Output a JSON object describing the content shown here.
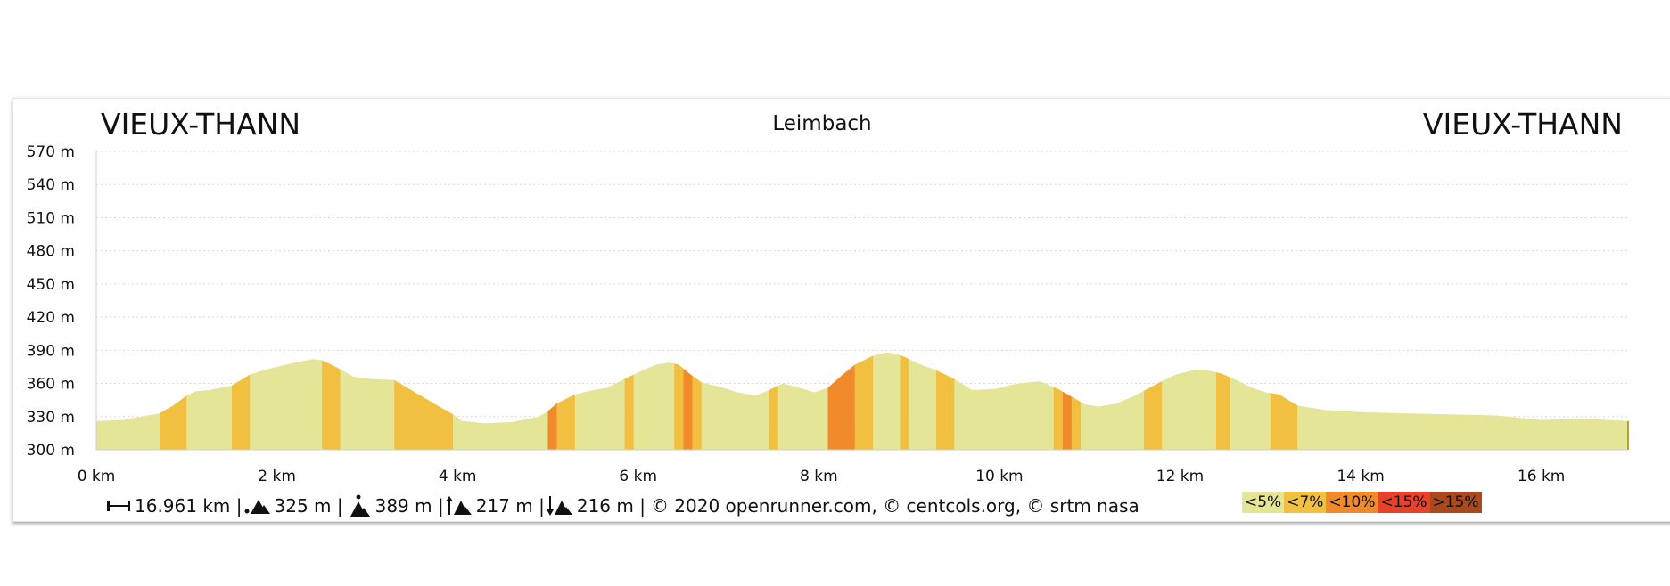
{
  "header": {
    "start_place": "VIEUX-THANN",
    "middle_place": "Leimbach",
    "end_place": "VIEUX-THANN"
  },
  "stats": {
    "distance": "16.961 km |",
    "min_alt": "325 m |",
    "max_alt": "389 m |",
    "ascent": "217 m |",
    "descent": "216 m |",
    "credits": "© 2020 openrunner.com, © centcols.org, © srtm nasa"
  },
  "legend": [
    {
      "label": "<5%",
      "color": "#e5e598"
    },
    {
      "label": "<7%",
      "color": "#f2c040"
    },
    {
      "label": "<10%",
      "color": "#f08a2a"
    },
    {
      "label": "<15%",
      "color": "#e8412a"
    },
    {
      "label": ">15%",
      "color": "#a84a1e"
    }
  ],
  "chart_data": {
    "type": "area",
    "title": "Leimbach",
    "xlabel": "",
    "ylabel": "",
    "xlim": [
      0,
      16.961
    ],
    "ylim": [
      300,
      570
    ],
    "grid": true,
    "y_ticks": [
      "300 m",
      "330 m",
      "360 m",
      "390 m",
      "420 m",
      "450 m",
      "480 m",
      "510 m",
      "540 m",
      "570 m"
    ],
    "x_ticks": [
      "0 km",
      "2 km",
      "4 km",
      "6 km",
      "8 km",
      "10 km",
      "12 km",
      "14 km",
      "16 km"
    ],
    "series": [
      {
        "x": [
          0,
          0.3,
          0.5,
          0.7,
          0.85,
          1.0,
          1.1,
          1.25,
          1.5,
          1.7,
          1.85,
          2.0,
          2.2,
          2.4,
          2.5,
          2.65,
          2.85,
          3.05,
          3.3,
          3.55,
          3.8,
          3.95,
          4.05,
          4.3,
          4.6,
          4.9,
          5.0,
          5.1,
          5.3,
          5.5,
          5.65,
          5.8,
          5.9,
          6.05,
          6.2,
          6.35,
          6.45,
          6.55,
          6.7,
          6.9,
          7.1,
          7.3,
          7.45,
          7.6,
          7.75,
          7.95,
          8.1,
          8.25,
          8.4,
          8.6,
          8.75,
          8.85,
          8.95,
          9.1,
          9.3,
          9.5,
          9.7,
          9.95,
          10.2,
          10.45,
          10.65,
          10.8,
          10.95,
          11.1,
          11.3,
          11.5,
          11.75,
          11.95,
          12.15,
          12.3,
          12.45,
          12.6,
          12.8,
          12.95,
          13.1,
          13.3,
          13.6,
          14.0,
          14.5,
          15.0,
          15.5,
          16.0,
          16.5,
          16.961
        ],
        "y": [
          326,
          327,
          330,
          333,
          340,
          349,
          353,
          354,
          358,
          368,
          372,
          375,
          379,
          382,
          381,
          375,
          366,
          364,
          363,
          351,
          339,
          332,
          326,
          324,
          325,
          330,
          335,
          342,
          350,
          354,
          356,
          362,
          366,
          372,
          377,
          379,
          377,
          370,
          361,
          357,
          352,
          349,
          354,
          360,
          357,
          352,
          356,
          367,
          377,
          385,
          388,
          387,
          384,
          378,
          372,
          364,
          354,
          355,
          360,
          362,
          355,
          348,
          341,
          339,
          342,
          349,
          360,
          368,
          372,
          372,
          369,
          364,
          356,
          352,
          350,
          340,
          336,
          334,
          333,
          332,
          331,
          327,
          328,
          326
        ]
      }
    ],
    "slope_segments": [
      {
        "from": 0.7,
        "to": 1.0,
        "class": "<7%"
      },
      {
        "from": 1.5,
        "to": 1.7,
        "class": "<7%"
      },
      {
        "from": 2.5,
        "to": 2.7,
        "class": "<7%"
      },
      {
        "from": 3.3,
        "to": 3.95,
        "class": "<7%"
      },
      {
        "from": 5.0,
        "to": 5.1,
        "class": "<10%"
      },
      {
        "from": 5.1,
        "to": 5.3,
        "class": "<7%"
      },
      {
        "from": 5.85,
        "to": 5.95,
        "class": "<7%"
      },
      {
        "from": 6.4,
        "to": 6.5,
        "class": "<7%"
      },
      {
        "from": 6.5,
        "to": 6.6,
        "class": "<10%"
      },
      {
        "from": 6.6,
        "to": 6.7,
        "class": "<7%"
      },
      {
        "from": 7.45,
        "to": 7.55,
        "class": "<7%"
      },
      {
        "from": 8.1,
        "to": 8.4,
        "class": "<10%"
      },
      {
        "from": 8.4,
        "to": 8.6,
        "class": "<7%"
      },
      {
        "from": 8.9,
        "to": 9.0,
        "class": "<7%"
      },
      {
        "from": 9.3,
        "to": 9.5,
        "class": "<7%"
      },
      {
        "from": 10.6,
        "to": 10.7,
        "class": "<7%"
      },
      {
        "from": 10.7,
        "to": 10.8,
        "class": "<10%"
      },
      {
        "from": 10.8,
        "to": 10.9,
        "class": "<7%"
      },
      {
        "from": 11.6,
        "to": 11.8,
        "class": "<7%"
      },
      {
        "from": 12.4,
        "to": 12.55,
        "class": "<7%"
      },
      {
        "from": 13.0,
        "to": 13.3,
        "class": "<7%"
      }
    ]
  }
}
